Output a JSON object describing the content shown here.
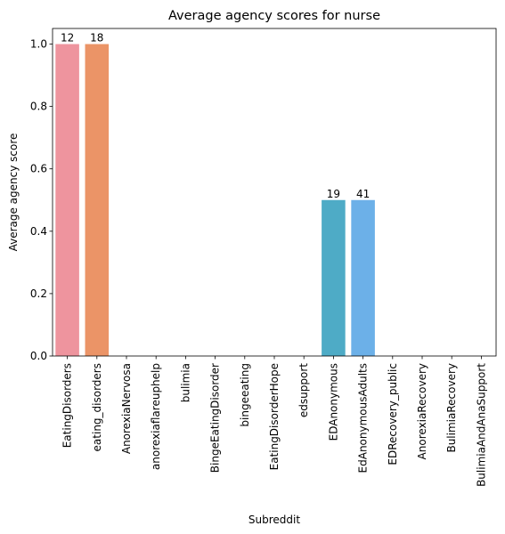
{
  "chart_data": {
    "type": "bar",
    "title": "Average agency scores for nurse",
    "xlabel": "Subreddit",
    "ylabel": "Average agency score",
    "ylim": [
      0,
      1.05
    ],
    "yticks": [
      "0.0",
      "0.2",
      "0.4",
      "0.6",
      "0.8",
      "1.0"
    ],
    "grid": false,
    "categories": [
      "EatingDisorders",
      "eating_disorders",
      "AnorexiaNervosa",
      "anorexiaflareuphelp",
      "bulimia",
      "BingeEatingDisorder",
      "bingeeating",
      "EatingDisorderHope",
      "edsupport",
      "EDAnonymous",
      "EdAnonymousAdults",
      "EDRecovery_public",
      "AnorexiaRecovery",
      "BulimiaRecovery",
      "BulimiaAndAnaSupport"
    ],
    "values": [
      1.0,
      1.0,
      0,
      0,
      0,
      0,
      0,
      0,
      0,
      0.5,
      0.5,
      0,
      0,
      0,
      0
    ],
    "bar_labels": [
      "12",
      "18",
      "",
      "",
      "",
      "",
      "",
      "",
      "",
      "19",
      "41",
      "",
      "",
      "",
      ""
    ],
    "colors": [
      "#ee949e",
      "#eb9467",
      "#cfa443",
      "#b6a839",
      "#97b03b",
      "#47b649",
      "#4ab68a",
      "#4bb49f",
      "#4bb4b0",
      "#4eabc6",
      "#6cb0e8",
      "#a6a1f0",
      "#d290ee",
      "#ee8fd7",
      "#ef91bd"
    ]
  }
}
